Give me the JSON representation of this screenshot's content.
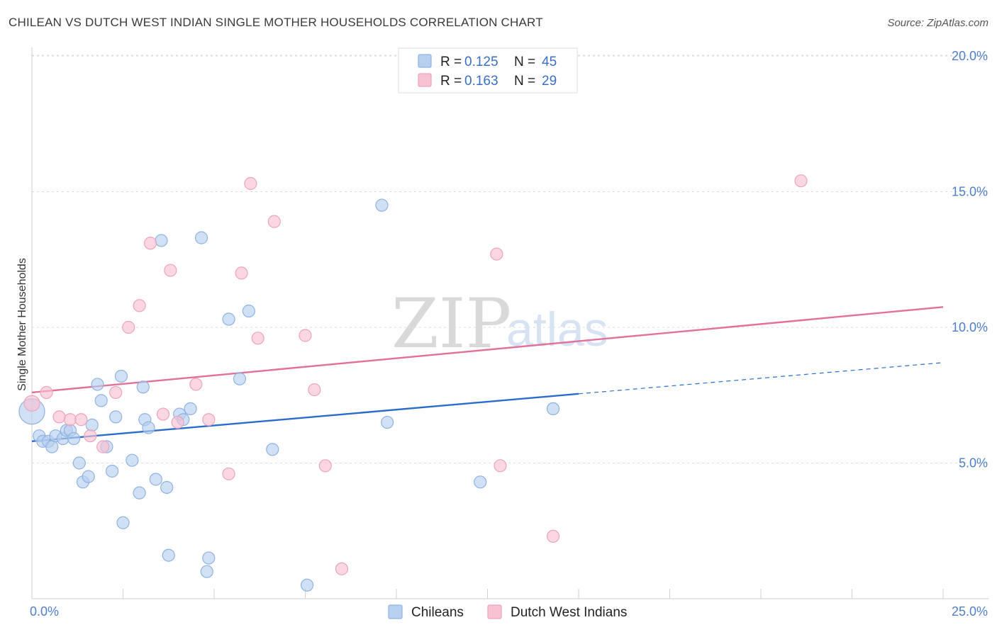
{
  "header": {
    "title": "CHILEAN VS DUTCH WEST INDIAN SINGLE MOTHER HOUSEHOLDS CORRELATION CHART",
    "source": "Source: ZipAtlas.com"
  },
  "watermark": {
    "zip": "ZIP",
    "atlas": "atlas"
  },
  "legend": {
    "r_label": "R =",
    "n_label": "N =",
    "items": [
      {
        "r": "0.125",
        "n": "45"
      },
      {
        "r": "0.163",
        "n": "29"
      }
    ]
  },
  "colors": {
    "blue_fill": "#b7d0f0",
    "blue_stroke": "#8fb2e0",
    "blue_line": "#2a6dc9",
    "pink_fill": "#f7c2d2",
    "pink_stroke": "#eea4bb",
    "pink_line": "#e2709a",
    "tick": "#4f7fc7",
    "grid": "#dcdcdc"
  },
  "chart_data": {
    "type": "scatter",
    "title": "CHILEAN VS DUTCH WEST INDIAN SINGLE MOTHER HOUSEHOLDS CORRELATION CHART",
    "ylabel": "Single Mother Households",
    "xlim": [
      0,
      25
    ],
    "ylim": [
      0,
      20
    ],
    "x_tick_labels": [
      "0.0%",
      "25.0%"
    ],
    "y_ticks": [
      5,
      10,
      15,
      20
    ],
    "y_tick_labels": [
      "5.0%",
      "10.0%",
      "15.0%",
      "20.0%"
    ],
    "grid": "horizontal dashed",
    "legend_position": "top-center",
    "series": [
      {
        "name": "Chileans",
        "points": [
          [
            0.0,
            6.9
          ],
          [
            0.2,
            6.0
          ],
          [
            0.3,
            5.8
          ],
          [
            0.45,
            5.8
          ],
          [
            0.55,
            5.6
          ],
          [
            0.65,
            6.0
          ],
          [
            0.85,
            5.9
          ],
          [
            0.95,
            6.2
          ],
          [
            1.05,
            6.2
          ],
          [
            1.15,
            5.9
          ],
          [
            1.3,
            5.0
          ],
          [
            1.4,
            4.3
          ],
          [
            1.55,
            4.5
          ],
          [
            1.65,
            6.4
          ],
          [
            1.8,
            7.9
          ],
          [
            1.9,
            7.3
          ],
          [
            2.05,
            5.6
          ],
          [
            2.2,
            4.7
          ],
          [
            2.3,
            6.7
          ],
          [
            2.45,
            8.2
          ],
          [
            2.5,
            2.8
          ],
          [
            2.75,
            5.1
          ],
          [
            2.95,
            3.9
          ],
          [
            3.05,
            7.8
          ],
          [
            3.1,
            6.6
          ],
          [
            3.2,
            6.3
          ],
          [
            3.4,
            4.4
          ],
          [
            3.55,
            13.2
          ],
          [
            3.7,
            4.1
          ],
          [
            3.75,
            1.6
          ],
          [
            4.05,
            6.8
          ],
          [
            4.15,
            6.6
          ],
          [
            4.35,
            7.0
          ],
          [
            4.65,
            13.3
          ],
          [
            4.8,
            1.0
          ],
          [
            4.85,
            1.5
          ],
          [
            5.4,
            10.3
          ],
          [
            5.7,
            8.1
          ],
          [
            5.95,
            10.6
          ],
          [
            6.6,
            5.5
          ],
          [
            7.55,
            0.5
          ],
          [
            9.6,
            14.5
          ],
          [
            9.75,
            6.5
          ],
          [
            12.3,
            4.3
          ],
          [
            14.3,
            7.0
          ]
        ],
        "trend": {
          "x": [
            0,
            15
          ],
          "y": [
            5.8,
            7.55
          ]
        },
        "trend_extension": {
          "x": [
            15,
            25
          ],
          "y": [
            7.55,
            8.7
          ]
        }
      },
      {
        "name": "Dutch West Indians",
        "points": [
          [
            0.0,
            7.2
          ],
          [
            0.4,
            7.6
          ],
          [
            0.75,
            6.7
          ],
          [
            1.05,
            6.6
          ],
          [
            1.35,
            6.6
          ],
          [
            1.6,
            6.0
          ],
          [
            1.95,
            5.6
          ],
          [
            2.3,
            7.6
          ],
          [
            2.65,
            10.0
          ],
          [
            2.95,
            10.8
          ],
          [
            3.25,
            13.1
          ],
          [
            3.6,
            6.8
          ],
          [
            3.8,
            12.1
          ],
          [
            4.0,
            6.5
          ],
          [
            4.5,
            7.9
          ],
          [
            4.85,
            6.6
          ],
          [
            5.4,
            4.6
          ],
          [
            5.75,
            12.0
          ],
          [
            6.0,
            15.3
          ],
          [
            6.2,
            9.6
          ],
          [
            6.65,
            13.9
          ],
          [
            7.5,
            9.7
          ],
          [
            7.75,
            7.7
          ],
          [
            8.05,
            4.9
          ],
          [
            8.5,
            1.1
          ],
          [
            12.75,
            12.7
          ],
          [
            12.85,
            4.9
          ],
          [
            14.3,
            2.3
          ],
          [
            21.1,
            15.4
          ]
        ],
        "trend": {
          "x": [
            0,
            25
          ],
          "y": [
            7.6,
            10.75
          ]
        }
      }
    ]
  },
  "bottom_legend": {
    "items": [
      {
        "label": "Chileans"
      },
      {
        "label": "Dutch West Indians"
      }
    ]
  }
}
